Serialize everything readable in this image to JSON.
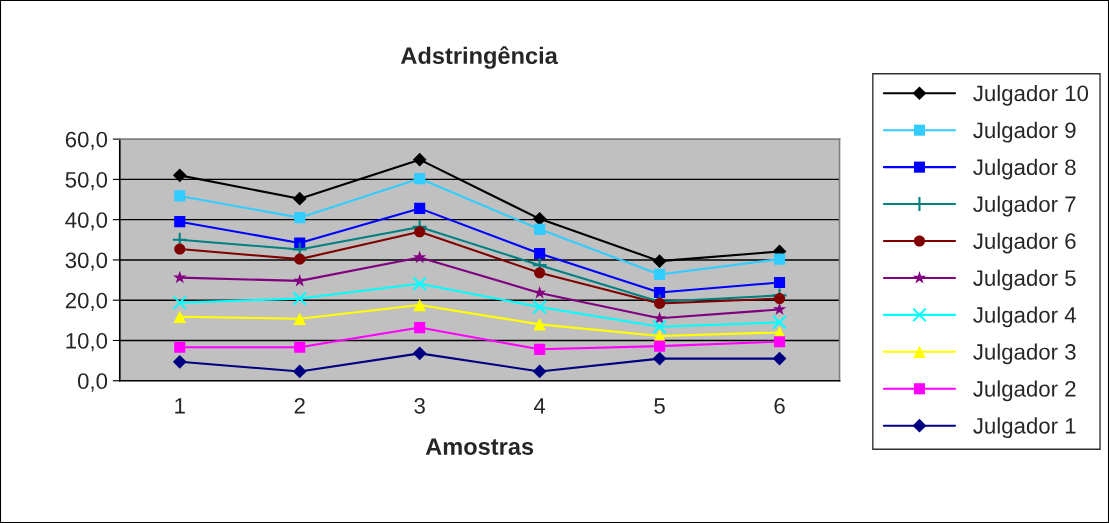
{
  "chart_data": {
    "type": "line",
    "title": "Adstringência",
    "xlabel": "Amostras",
    "categories": [
      "1",
      "2",
      "3",
      "4",
      "5",
      "6"
    ],
    "ylim": [
      0,
      60
    ],
    "yticks": [
      {
        "value": 0,
        "label": "0,0"
      },
      {
        "value": 10,
        "label": "10,0"
      },
      {
        "value": 20,
        "label": "20,0"
      },
      {
        "value": 30,
        "label": "30,0"
      },
      {
        "value": 40,
        "label": "40,0"
      },
      {
        "value": 50,
        "label": "50,0"
      },
      {
        "value": 60,
        "label": "60,0"
      }
    ],
    "grid": "y",
    "legend": "right",
    "series": [
      {
        "name": "Julgador 10",
        "color": "#000000",
        "marker": "diamond",
        "values": [
          51.0,
          45.2,
          54.9,
          40.2,
          29.7,
          32.1
        ]
      },
      {
        "name": "Julgador 9",
        "color": "#33ccff",
        "marker": "square",
        "values": [
          45.9,
          40.5,
          50.2,
          37.6,
          26.4,
          30.2
        ]
      },
      {
        "name": "Julgador 8",
        "color": "#0000ff",
        "marker": "square",
        "values": [
          39.5,
          34.2,
          42.8,
          31.6,
          21.9,
          24.4
        ]
      },
      {
        "name": "Julgador 7",
        "color": "#008080",
        "marker": "plus",
        "values": [
          35.0,
          32.6,
          38.2,
          28.7,
          19.6,
          21.2
        ]
      },
      {
        "name": "Julgador 6",
        "color": "#800000",
        "marker": "circle",
        "values": [
          32.7,
          30.2,
          37.0,
          26.8,
          19.2,
          20.4
        ]
      },
      {
        "name": "Julgador 5",
        "color": "#800080",
        "marker": "star",
        "values": [
          25.6,
          24.8,
          30.6,
          21.8,
          15.5,
          17.7
        ]
      },
      {
        "name": "Julgador 4",
        "color": "#00ffff",
        "marker": "cross",
        "values": [
          19.4,
          20.4,
          24.1,
          18.3,
          13.4,
          14.5
        ]
      },
      {
        "name": "Julgador 3",
        "color": "#ffff00",
        "marker": "triangle",
        "values": [
          15.9,
          15.4,
          18.8,
          14.0,
          11.1,
          12.0
        ]
      },
      {
        "name": "Julgador 2",
        "color": "#ff00ff",
        "marker": "square",
        "values": [
          8.3,
          8.3,
          13.2,
          7.8,
          8.6,
          9.7
        ]
      },
      {
        "name": "Julgador 1",
        "color": "#000080",
        "marker": "diamond",
        "values": [
          4.7,
          2.3,
          6.8,
          2.3,
          5.5,
          5.5
        ]
      }
    ]
  }
}
